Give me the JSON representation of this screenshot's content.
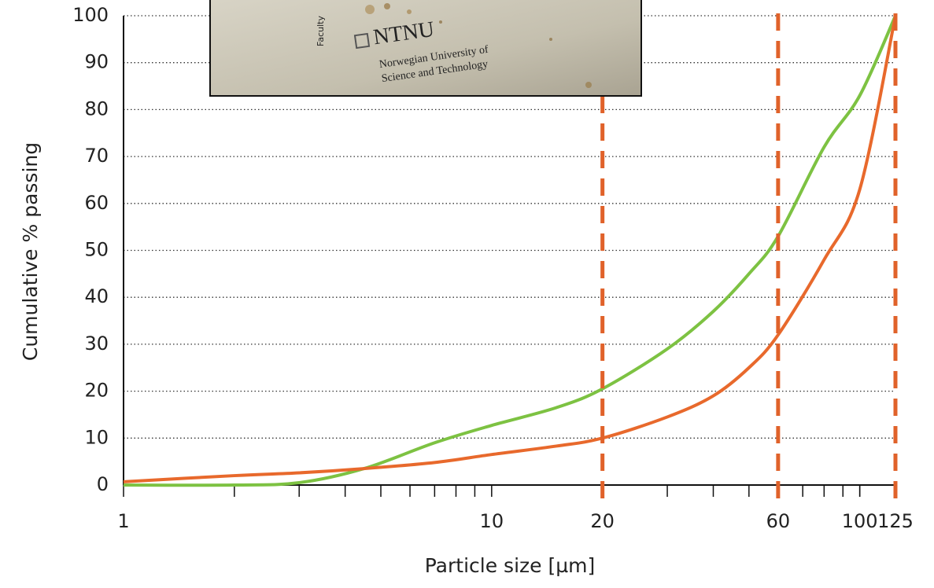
{
  "chart_data": {
    "type": "line",
    "xlabel": "Particle size [µm]",
    "ylabel": "Cumulative % passing",
    "x": [
      1,
      2,
      3,
      4.5,
      7,
      10,
      15,
      20,
      30,
      40,
      50,
      60,
      80,
      100,
      125
    ],
    "series": [
      {
        "color": "#7dc242",
        "values": [
          0,
          0,
          0.5,
          3.5,
          9,
          12.7,
          16.5,
          20.5,
          29,
          37,
          45,
          53,
          72,
          83,
          100
        ]
      },
      {
        "color": "#e8692c",
        "values": [
          0.7,
          2,
          2.6,
          3.5,
          4.8,
          6.5,
          8.3,
          10,
          14.5,
          19,
          25,
          32,
          48,
          63,
          100
        ]
      }
    ],
    "xscale": "log",
    "xlim": [
      1,
      125
    ],
    "xticks": [
      1,
      10,
      20,
      60,
      100,
      125
    ],
    "minor_xticks": [
      2,
      3,
      4,
      5,
      6,
      7,
      8,
      9,
      20,
      30,
      40,
      50,
      60,
      70,
      80,
      90,
      100
    ],
    "ylim": [
      0,
      100
    ],
    "yticks": [
      0,
      10,
      20,
      30,
      40,
      50,
      60,
      70,
      80,
      90,
      100
    ],
    "grid": true,
    "reference_lines": {
      "color": "#e0622a",
      "values": [
        20,
        60,
        125
      ]
    }
  },
  "inset": {
    "logo": "NTNU",
    "lines": [
      "Norwegian University of",
      "Science and Technology"
    ],
    "side_text": "Faculty"
  }
}
